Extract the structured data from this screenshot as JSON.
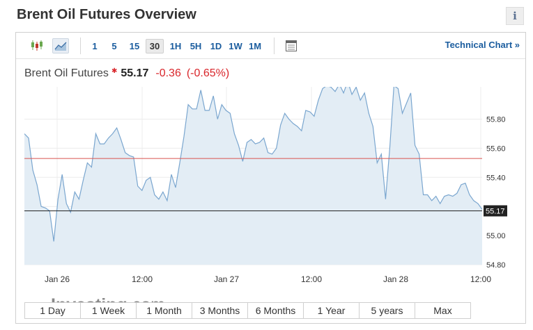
{
  "page": {
    "title": "Brent Oil Futures Overview",
    "info_label": "i"
  },
  "toolbar": {
    "icons": [
      "candlestick-icon",
      "area-chart-icon",
      "table-icon"
    ],
    "intervals": [
      {
        "label": "1",
        "active": false
      },
      {
        "label": "5",
        "active": false
      },
      {
        "label": "15",
        "active": false
      },
      {
        "label": "30",
        "active": true
      },
      {
        "label": "1H",
        "active": false
      },
      {
        "label": "5H",
        "active": false
      },
      {
        "label": "1D",
        "active": false
      },
      {
        "label": "1W",
        "active": false
      },
      {
        "label": "1M",
        "active": false
      }
    ],
    "technical_chart": "Technical Chart »"
  },
  "quote": {
    "name": "Brent Oil Futures",
    "price": "55.17",
    "change": "-0.36",
    "change_pct": "(-0.65%)",
    "star": "✱"
  },
  "watermark": {
    "brand": "Investing",
    "suffix": ".com"
  },
  "range_buttons": [
    "1 Day",
    "1 Week",
    "1 Month",
    "3 Months",
    "6 Months",
    "1 Year",
    "5 years",
    "Max"
  ],
  "chart_data": {
    "type": "area",
    "ylim": [
      54.8,
      56.0
    ],
    "yticks": [
      54.8,
      55.0,
      55.2,
      55.4,
      55.6,
      55.8
    ],
    "ytick_labels": [
      "54.80",
      "55.00",
      "",
      "55.40",
      "55.60",
      "55.80"
    ],
    "xtick_labels": [
      "Jan 26",
      "12:00",
      "Jan 27",
      "12:00",
      "Jan 28",
      "12:00"
    ],
    "reference_line": 55.53,
    "current_price": 55.17,
    "current_price_label": "55.17",
    "series": [
      {
        "values": [
          55.7,
          55.67,
          55.45,
          55.35,
          55.2,
          55.19,
          55.17,
          54.96,
          55.25,
          55.42,
          55.22,
          55.16,
          55.3,
          55.25,
          55.38,
          55.5,
          55.47,
          55.7,
          55.63,
          55.63,
          55.67,
          55.7,
          55.74,
          55.66,
          55.57,
          55.55,
          55.54,
          55.34,
          55.31,
          55.38,
          55.4,
          55.28,
          55.25,
          55.3,
          55.24,
          55.42,
          55.33,
          55.5,
          55.68,
          55.9,
          55.87,
          55.87,
          56.0,
          55.86,
          55.86,
          55.96,
          55.8,
          55.9,
          55.86,
          55.84,
          55.7,
          55.62,
          55.51,
          55.64,
          55.66,
          55.63,
          55.64,
          55.67,
          55.57,
          55.56,
          55.6,
          55.76,
          55.84,
          55.8,
          55.77,
          55.75,
          55.72,
          55.86,
          55.85,
          55.82,
          55.93,
          56.01,
          56.03,
          56.02,
          55.99,
          56.04,
          55.98,
          56.06,
          55.97,
          56.02,
          55.93,
          55.98,
          55.84,
          55.75,
          55.5,
          55.56,
          55.25,
          55.6,
          56.03,
          56.01,
          55.84,
          55.91,
          55.98,
          55.62,
          55.56,
          55.28,
          55.28,
          55.24,
          55.27,
          55.22,
          55.27,
          55.28,
          55.27,
          55.29,
          55.35,
          55.36,
          55.28,
          55.24,
          55.22,
          55.18
        ]
      }
    ]
  }
}
